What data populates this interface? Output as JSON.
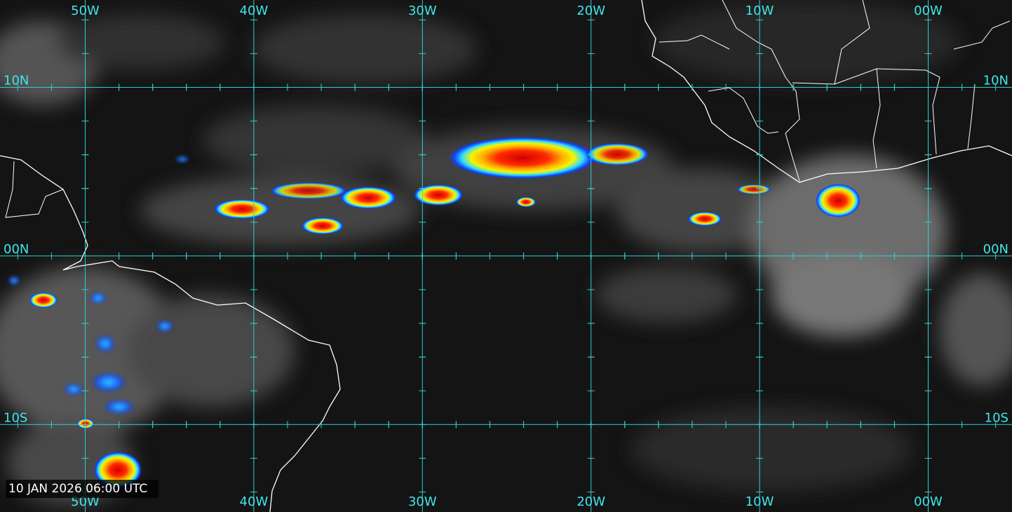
{
  "map": {
    "top_labels": [
      "50W",
      "40W",
      "30W",
      "20W",
      "10W",
      "00W"
    ],
    "bottom_labels": [
      "50W",
      "40W",
      "30W",
      "20W",
      "10W",
      "00W"
    ],
    "left_labels": [
      "10N",
      "00N",
      "10S"
    ],
    "right_labels": [
      "10N",
      "00N",
      "10S"
    ],
    "timestamp": "10 JAN 2026 06:00 UTC"
  }
}
